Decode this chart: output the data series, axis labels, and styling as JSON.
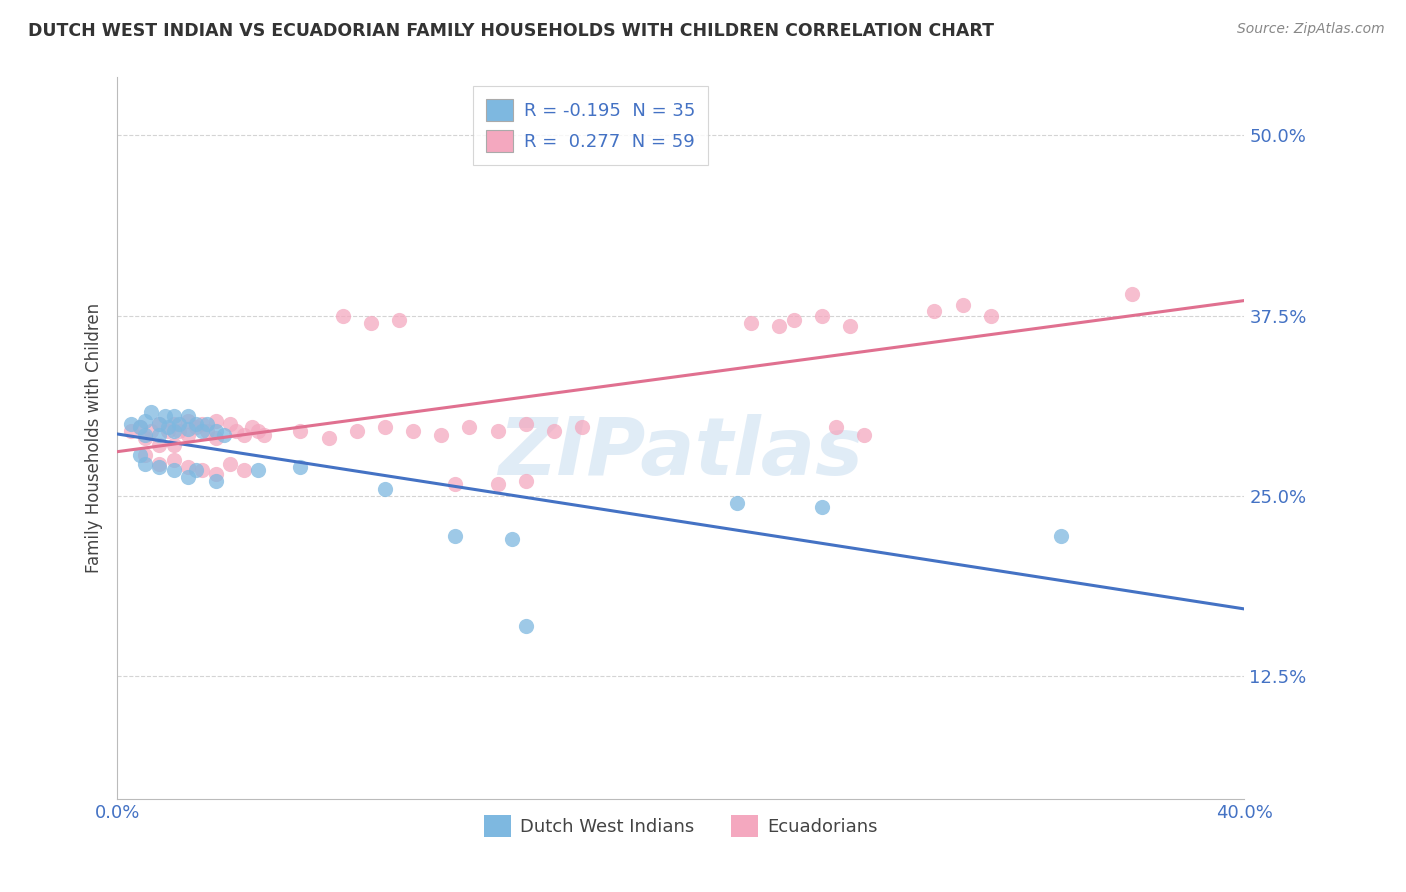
{
  "title": "DUTCH WEST INDIAN VS ECUADORIAN FAMILY HOUSEHOLDS WITH CHILDREN CORRELATION CHART",
  "source": "Source: ZipAtlas.com",
  "ylabel": "Family Households with Children",
  "ytick_labels": [
    "12.5%",
    "25.0%",
    "37.5%",
    "50.0%"
  ],
  "ytick_values": [
    0.125,
    0.25,
    0.375,
    0.5
  ],
  "xmin": 0.0,
  "xmax": 0.4,
  "ymin": 0.04,
  "ymax": 0.54,
  "legend_r1": "R = -0.195  N = 35",
  "legend_r2": "R =  0.277  N = 59",
  "legend_label1": "Dutch West Indians",
  "legend_label2": "Ecuadorians",
  "blue_color": "#7eb8e0",
  "pink_color": "#f4a8bf",
  "blue_line_color": "#4472c4",
  "pink_line_color": "#e07090",
  "blue_scatter": [
    [
      0.005,
      0.3
    ],
    [
      0.008,
      0.298
    ],
    [
      0.01,
      0.302
    ],
    [
      0.01,
      0.292
    ],
    [
      0.012,
      0.308
    ],
    [
      0.015,
      0.3
    ],
    [
      0.015,
      0.292
    ],
    [
      0.017,
      0.305
    ],
    [
      0.018,
      0.298
    ],
    [
      0.02,
      0.305
    ],
    [
      0.02,
      0.295
    ],
    [
      0.022,
      0.3
    ],
    [
      0.025,
      0.305
    ],
    [
      0.025,
      0.296
    ],
    [
      0.028,
      0.3
    ],
    [
      0.03,
      0.295
    ],
    [
      0.032,
      0.3
    ],
    [
      0.035,
      0.295
    ],
    [
      0.038,
      0.292
    ],
    [
      0.008,
      0.278
    ],
    [
      0.01,
      0.272
    ],
    [
      0.015,
      0.27
    ],
    [
      0.02,
      0.268
    ],
    [
      0.025,
      0.263
    ],
    [
      0.028,
      0.268
    ],
    [
      0.035,
      0.26
    ],
    [
      0.05,
      0.268
    ],
    [
      0.065,
      0.27
    ],
    [
      0.095,
      0.255
    ],
    [
      0.12,
      0.222
    ],
    [
      0.14,
      0.22
    ],
    [
      0.145,
      0.16
    ],
    [
      0.22,
      0.245
    ],
    [
      0.25,
      0.242
    ],
    [
      0.335,
      0.222
    ]
  ],
  "pink_scatter": [
    [
      0.005,
      0.295
    ],
    [
      0.008,
      0.298
    ],
    [
      0.01,
      0.29
    ],
    [
      0.012,
      0.295
    ],
    [
      0.015,
      0.3
    ],
    [
      0.015,
      0.285
    ],
    [
      0.018,
      0.295
    ],
    [
      0.02,
      0.3
    ],
    [
      0.02,
      0.285
    ],
    [
      0.022,
      0.295
    ],
    [
      0.025,
      0.302
    ],
    [
      0.025,
      0.292
    ],
    [
      0.028,
      0.298
    ],
    [
      0.03,
      0.3
    ],
    [
      0.032,
      0.295
    ],
    [
      0.035,
      0.302
    ],
    [
      0.035,
      0.29
    ],
    [
      0.04,
      0.3
    ],
    [
      0.042,
      0.295
    ],
    [
      0.045,
      0.292
    ],
    [
      0.048,
      0.298
    ],
    [
      0.05,
      0.295
    ],
    [
      0.052,
      0.292
    ],
    [
      0.01,
      0.278
    ],
    [
      0.015,
      0.272
    ],
    [
      0.02,
      0.275
    ],
    [
      0.025,
      0.27
    ],
    [
      0.03,
      0.268
    ],
    [
      0.035,
      0.265
    ],
    [
      0.04,
      0.272
    ],
    [
      0.045,
      0.268
    ],
    [
      0.065,
      0.295
    ],
    [
      0.075,
      0.29
    ],
    [
      0.085,
      0.295
    ],
    [
      0.095,
      0.298
    ],
    [
      0.105,
      0.295
    ],
    [
      0.115,
      0.292
    ],
    [
      0.125,
      0.298
    ],
    [
      0.135,
      0.295
    ],
    [
      0.145,
      0.3
    ],
    [
      0.155,
      0.295
    ],
    [
      0.165,
      0.298
    ],
    [
      0.08,
      0.375
    ],
    [
      0.09,
      0.37
    ],
    [
      0.1,
      0.372
    ],
    [
      0.225,
      0.37
    ],
    [
      0.235,
      0.368
    ],
    [
      0.24,
      0.372
    ],
    [
      0.25,
      0.375
    ],
    [
      0.26,
      0.368
    ],
    [
      0.29,
      0.378
    ],
    [
      0.3,
      0.382
    ],
    [
      0.31,
      0.375
    ],
    [
      0.255,
      0.298
    ],
    [
      0.265,
      0.292
    ],
    [
      0.36,
      0.39
    ],
    [
      0.12,
      0.258
    ],
    [
      0.135,
      0.258
    ],
    [
      0.145,
      0.26
    ]
  ],
  "watermark": "ZIPatlas",
  "background_color": "#ffffff",
  "grid_color": "#d0d0d0"
}
